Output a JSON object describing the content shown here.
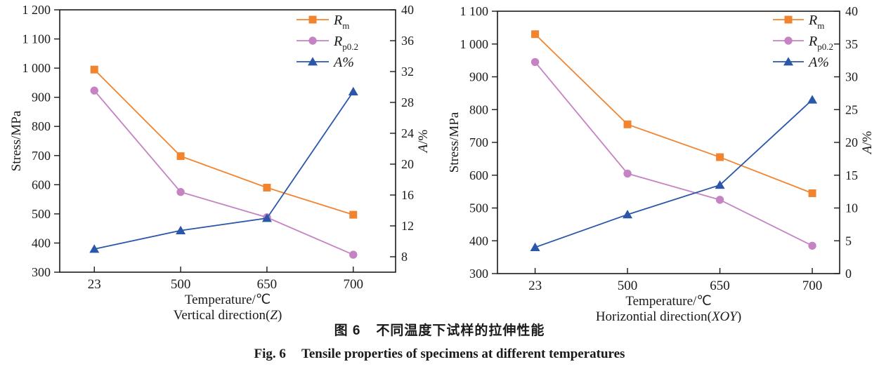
{
  "caption": {
    "zh_number": "图 6",
    "zh_text": "不同温度下试样的拉伸性能",
    "en_number": "Fig. 6",
    "en_text": "Tensile properties of specimens at different temperatures"
  },
  "colors": {
    "rm": "#F2842F",
    "rp02": "#C583C3",
    "a": "#2B57A8",
    "axis": "#1A1A1A"
  },
  "chart_data": [
    {
      "type": "line",
      "xlabel": "Temperature/℃",
      "x_sublabel": {
        "pre": "Vertical direction(",
        "italic": "Z",
        "post": ")"
      },
      "ylabel_left": "Stress/MPa",
      "ylabel_right": {
        "italic": "A",
        "post": "/%"
      },
      "categories": [
        "23",
        "500",
        "650",
        "700"
      ],
      "left_axis": {
        "min": 300,
        "max": 1200,
        "ticks": [
          300,
          400,
          500,
          600,
          700,
          800,
          900,
          1000,
          1100,
          1200
        ],
        "labels": [
          "300",
          "400",
          "500",
          "600",
          "700",
          "800",
          "900",
          "1 000",
          "1 100",
          "1 200"
        ]
      },
      "right_axis": {
        "min": 6,
        "max": 40,
        "ticks": [
          8,
          12,
          16,
          20,
          24,
          28,
          32,
          36,
          40
        ],
        "labels": [
          "8",
          "12",
          "16",
          "20",
          "24",
          "28",
          "32",
          "36",
          "40"
        ]
      },
      "grid": false,
      "legend_position": "top-right-inside",
      "series": [
        {
          "id": "rm",
          "legend_base": "R",
          "legend_sub": "m",
          "axis": "left",
          "marker": "square",
          "values": [
            995,
            698,
            590,
            497
          ]
        },
        {
          "id": "rp02",
          "legend_base": "R",
          "legend_sub": "p0.2",
          "axis": "left",
          "marker": "circle",
          "values": [
            923,
            575,
            488,
            360
          ]
        },
        {
          "id": "a",
          "legend_base": "A%",
          "legend_sub": "",
          "axis": "right",
          "marker": "triangle",
          "values": [
            9,
            11.4,
            13,
            29.4
          ]
        }
      ]
    },
    {
      "type": "line",
      "xlabel": "Temperature/℃",
      "x_sublabel": {
        "pre": "Horizontial direction(",
        "italic": "XOY",
        "post": ")"
      },
      "ylabel_left": "Stress/MPa",
      "ylabel_right": {
        "italic": "A",
        "post": "/%"
      },
      "categories": [
        "23",
        "500",
        "650",
        "700"
      ],
      "left_axis": {
        "min": 300,
        "max": 1100,
        "ticks": [
          300,
          400,
          500,
          600,
          700,
          800,
          900,
          1000,
          1100
        ],
        "labels": [
          "300",
          "400",
          "500",
          "600",
          "700",
          "800",
          "900",
          "1 000",
          "1 100"
        ]
      },
      "right_axis": {
        "min": 0,
        "max": 40,
        "ticks": [
          0,
          5,
          10,
          15,
          20,
          25,
          30,
          35,
          40
        ],
        "labels": [
          "0",
          "5",
          "10",
          "15",
          "20",
          "25",
          "30",
          "35",
          "40"
        ]
      },
      "grid": false,
      "legend_position": "top-right-inside",
      "series": [
        {
          "id": "rm",
          "legend_base": "R",
          "legend_sub": "m",
          "axis": "left",
          "marker": "square",
          "values": [
            1030,
            755,
            655,
            545
          ]
        },
        {
          "id": "rp02",
          "legend_base": "R",
          "legend_sub": "p0.2",
          "axis": "left",
          "marker": "circle",
          "values": [
            945,
            605,
            525,
            385
          ]
        },
        {
          "id": "a",
          "legend_base": "A%",
          "legend_sub": "",
          "axis": "right",
          "marker": "triangle",
          "values": [
            4,
            9,
            13.5,
            26.5
          ]
        }
      ]
    }
  ]
}
